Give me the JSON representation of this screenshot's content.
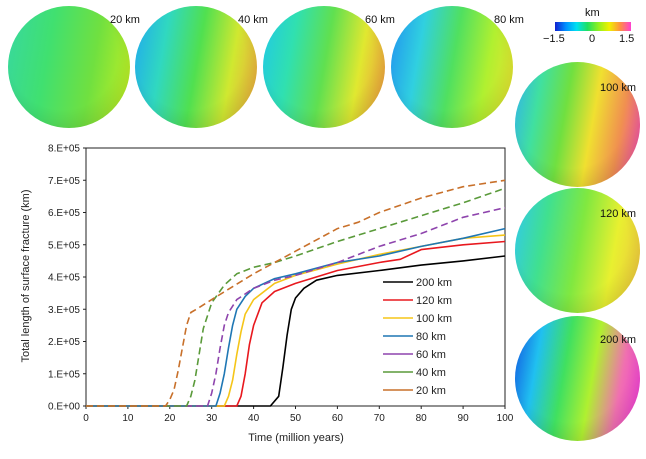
{
  "spheres": [
    {
      "label": "20 km",
      "colors": [
        "#38d8a0",
        "#40e070",
        "#70e040",
        "#c8f020"
      ]
    },
    {
      "label": "40 km",
      "colors": [
        "#20a8f0",
        "#30d8c0",
        "#50e050",
        "#d0e830",
        "#f0a040"
      ]
    },
    {
      "label": "60 km",
      "colors": [
        "#20c8e8",
        "#30e0b0",
        "#60e050",
        "#e0e830",
        "#f09040"
      ]
    },
    {
      "label": "80 km",
      "colors": [
        "#2090f0",
        "#30d0e0",
        "#50e060",
        "#b0f030",
        "#f0e030"
      ]
    },
    {
      "label": "100 km",
      "colors": [
        "#30b0f0",
        "#40e0a0",
        "#70e040",
        "#f0e030",
        "#f09050",
        "#f040c0"
      ]
    },
    {
      "label": "120 km",
      "colors": [
        "#30c8f0",
        "#40e090",
        "#80e840",
        "#e8f030",
        "#f0c040"
      ]
    },
    {
      "label": "200 km",
      "colors": [
        "#1050e0",
        "#20c0f0",
        "#40e060",
        "#b0f030",
        "#f070b0",
        "#f030e0"
      ]
    }
  ],
  "colorbar": {
    "unit": "km",
    "min_label": "−1.5",
    "mid_label": "0",
    "max_label": "1.5"
  },
  "chart_data": {
    "type": "line",
    "xlabel": "Time (million years)",
    "ylabel": "Total length of surface fracture (km)",
    "xlim": [
      0,
      100
    ],
    "ylim": [
      0,
      800000
    ],
    "x_ticks": [
      "0",
      "10",
      "20",
      "30",
      "40",
      "50",
      "60",
      "70",
      "80",
      "90",
      "100"
    ],
    "y_ticks": [
      "0.E+00",
      "1.E+05",
      "2.E+05",
      "3.E+05",
      "4.E+05",
      "5.E+05",
      "6.E+05",
      "7.E+05",
      "8.E+05"
    ],
    "grid": false,
    "legend_position": "bottom-right",
    "series": [
      {
        "name": "200 km",
        "color": "#000000",
        "dashed": false,
        "points": [
          [
            0,
            0
          ],
          [
            44,
            0
          ],
          [
            46,
            30000
          ],
          [
            47,
            120000
          ],
          [
            48,
            220000
          ],
          [
            49,
            300000
          ],
          [
            50,
            335000
          ],
          [
            52,
            365000
          ],
          [
            55,
            390000
          ],
          [
            60,
            405000
          ],
          [
            70,
            420000
          ],
          [
            80,
            437000
          ],
          [
            90,
            450000
          ],
          [
            100,
            465000
          ]
        ]
      },
      {
        "name": "120 km",
        "color": "#e8181e",
        "dashed": false,
        "points": [
          [
            0,
            0
          ],
          [
            36,
            0
          ],
          [
            37,
            30000
          ],
          [
            38,
            100000
          ],
          [
            39,
            190000
          ],
          [
            40,
            250000
          ],
          [
            42,
            320000
          ],
          [
            45,
            355000
          ],
          [
            50,
            380000
          ],
          [
            60,
            420000
          ],
          [
            70,
            445000
          ],
          [
            75,
            455000
          ],
          [
            80,
            485000
          ],
          [
            90,
            500000
          ],
          [
            100,
            510000
          ]
        ]
      },
      {
        "name": "100 km",
        "color": "#f5c518",
        "dashed": false,
        "points": [
          [
            0,
            0
          ],
          [
            33,
            0
          ],
          [
            34,
            30000
          ],
          [
            35,
            80000
          ],
          [
            36,
            160000
          ],
          [
            37,
            230000
          ],
          [
            38,
            285000
          ],
          [
            40,
            330000
          ],
          [
            45,
            380000
          ],
          [
            50,
            405000
          ],
          [
            60,
            440000
          ],
          [
            70,
            470000
          ],
          [
            80,
            495000
          ],
          [
            90,
            520000
          ],
          [
            100,
            530000
          ]
        ]
      },
      {
        "name": "80 km",
        "color": "#1f77b4",
        "dashed": false,
        "points": [
          [
            0,
            0
          ],
          [
            31,
            0
          ],
          [
            32,
            40000
          ],
          [
            33,
            100000
          ],
          [
            34,
            180000
          ],
          [
            35,
            250000
          ],
          [
            36,
            300000
          ],
          [
            38,
            340000
          ],
          [
            40,
            365000
          ],
          [
            45,
            395000
          ],
          [
            50,
            410000
          ],
          [
            60,
            445000
          ],
          [
            70,
            465000
          ],
          [
            80,
            495000
          ],
          [
            90,
            520000
          ],
          [
            100,
            550000
          ]
        ]
      },
      {
        "name": "60 km",
        "color": "#8e44ad",
        "dashed": true,
        "points": [
          [
            0,
            0
          ],
          [
            29,
            0
          ],
          [
            30,
            40000
          ],
          [
            31,
            100000
          ],
          [
            32,
            180000
          ],
          [
            33,
            250000
          ],
          [
            34,
            290000
          ],
          [
            36,
            330000
          ],
          [
            40,
            365000
          ],
          [
            45,
            390000
          ],
          [
            50,
            405000
          ],
          [
            60,
            445000
          ],
          [
            70,
            495000
          ],
          [
            80,
            535000
          ],
          [
            90,
            585000
          ],
          [
            100,
            615000
          ]
        ]
      },
      {
        "name": "40 km",
        "color": "#5a9a3a",
        "dashed": true,
        "points": [
          [
            0,
            0
          ],
          [
            24,
            0
          ],
          [
            25,
            30000
          ],
          [
            26,
            80000
          ],
          [
            27,
            160000
          ],
          [
            28,
            240000
          ],
          [
            30,
            320000
          ],
          [
            33,
            375000
          ],
          [
            36,
            410000
          ],
          [
            40,
            430000
          ],
          [
            45,
            445000
          ],
          [
            50,
            465000
          ],
          [
            60,
            510000
          ],
          [
            70,
            550000
          ],
          [
            80,
            590000
          ],
          [
            90,
            630000
          ],
          [
            100,
            675000
          ]
        ]
      },
      {
        "name": "20 km",
        "color": "#c8702a",
        "dashed": true,
        "points": [
          [
            0,
            0
          ],
          [
            19,
            0
          ],
          [
            20,
            20000
          ],
          [
            21,
            50000
          ],
          [
            22,
            110000
          ],
          [
            23,
            180000
          ],
          [
            24,
            250000
          ],
          [
            25,
            290000
          ],
          [
            27,
            305000
          ],
          [
            30,
            330000
          ],
          [
            35,
            370000
          ],
          [
            40,
            410000
          ],
          [
            45,
            445000
          ],
          [
            50,
            480000
          ],
          [
            60,
            550000
          ],
          [
            65,
            570000
          ],
          [
            70,
            600000
          ],
          [
            80,
            645000
          ],
          [
            90,
            680000
          ],
          [
            100,
            700000
          ]
        ]
      }
    ]
  }
}
